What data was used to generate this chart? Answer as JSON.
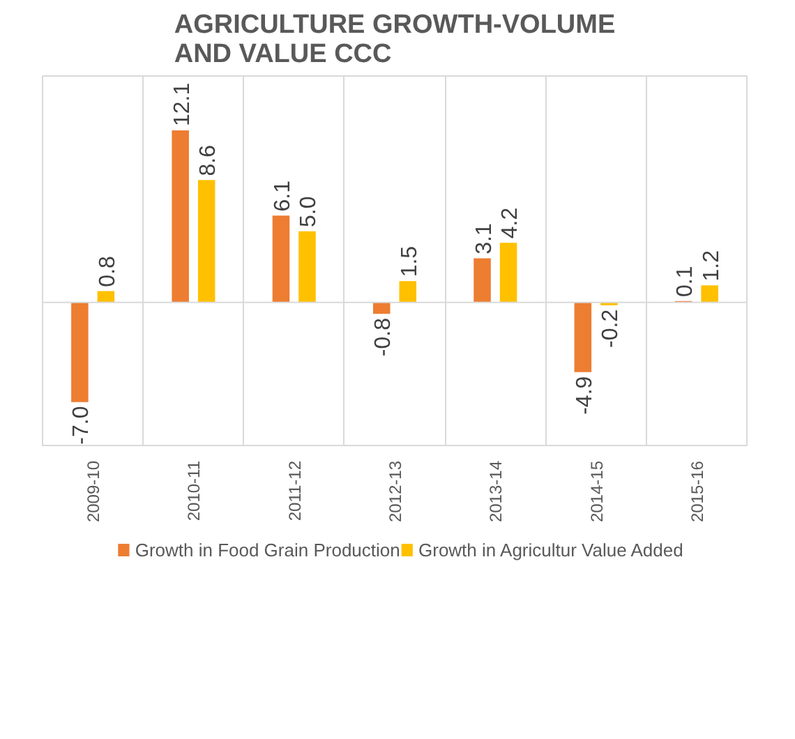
{
  "chart_data": {
    "type": "bar",
    "title": "AGRICULTURE GROWTH-VOLUME\nAND VALUE CCC",
    "categories": [
      "2009-10",
      "2010-11",
      "2011-12",
      "2012-13",
      "2013-14",
      "2014-15",
      "2015-16"
    ],
    "series": [
      {
        "name": "Growth in Food Grain Production",
        "color": "#ed7d31",
        "values": [
          -7.0,
          12.1,
          6.1,
          -0.8,
          3.1,
          -4.9,
          0.1
        ],
        "value_labels": [
          "-7.0",
          "12.1",
          "6.1",
          "-0.8",
          "3.1",
          "-4.9",
          "0.1"
        ]
      },
      {
        "name": "Growth in Agricultur Value Added",
        "color": "#ffc000",
        "values": [
          0.8,
          8.6,
          5.0,
          1.5,
          4.2,
          -0.2,
          1.2
        ],
        "value_labels": [
          "0.8",
          "8.6",
          "5.0",
          "1.5",
          "4.2",
          "-0.2",
          "1.2"
        ]
      }
    ],
    "grid": "x",
    "legend": "bottom"
  }
}
